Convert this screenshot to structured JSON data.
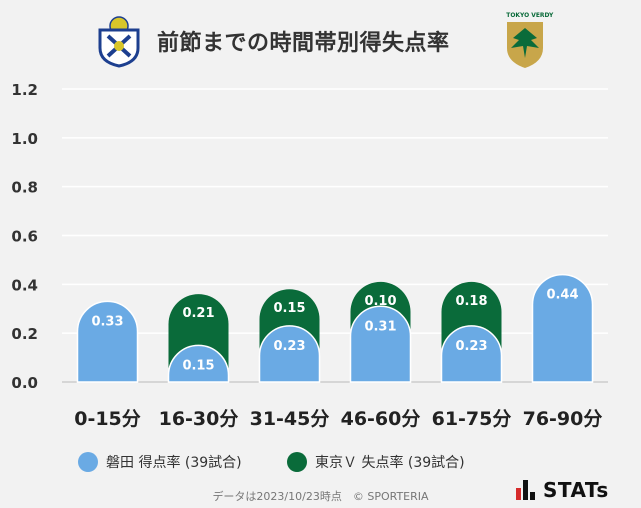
{
  "header": {
    "title": "前節までの時間帯別得失点率",
    "left_logo": "jubilo-iwata-crest",
    "right_logo": "tokyo-verdy-crest",
    "right_logo_text": "TOKYO VERDY"
  },
  "chart_data": {
    "type": "bar",
    "stacked": true,
    "categories": [
      "0-15分",
      "16-30分",
      "31-45分",
      "46-60分",
      "61-75分",
      "76-90分"
    ],
    "series": [
      {
        "name": "磐田 得点率 (39試合)",
        "values": [
          0.33,
          0.15,
          0.23,
          0.31,
          0.23,
          0.44
        ],
        "color": "#6aaae4"
      },
      {
        "name": "東京Ｖ 失点率 (39試合)",
        "values": [
          0.0,
          0.21,
          0.15,
          0.1,
          0.18,
          0.0
        ],
        "color": "#0a6b3a"
      }
    ],
    "data_labels": [
      [
        "0.33",
        "0.15",
        "0.23",
        "0.31",
        "0.23",
        "0.44"
      ],
      [
        "",
        "0.21",
        "0.15",
        "0.10",
        "0.18",
        ""
      ]
    ],
    "ylim": [
      0,
      1.2
    ],
    "yticks": [
      "0.0",
      "0.2",
      "0.4",
      "0.6",
      "0.8",
      "1.0",
      "1.2"
    ],
    "grid": true,
    "legend_position": "bottom"
  },
  "footnote": "データは2023/10/23時点　© SPORTERIA",
  "brand": "STATs"
}
